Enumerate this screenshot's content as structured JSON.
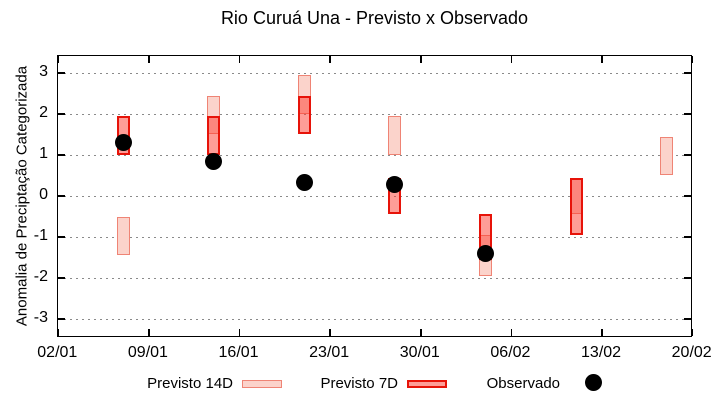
{
  "chart_data": {
    "type": "bar",
    "subtype": "forecast-range-boxes-with-observed-points",
    "title": "Rio Curuá Una - Previsto x Observado",
    "ylabel": "Anomalia de Preciptação Categorizada",
    "xlabel": "",
    "ylim": [
      -3.44,
      3.44
    ],
    "yticks": [
      3,
      2,
      1,
      0,
      -1,
      -2,
      -3
    ],
    "xlim_days": [
      0,
      49
    ],
    "xticks": [
      {
        "day": 0,
        "label": "02/01"
      },
      {
        "day": 7,
        "label": "09/01"
      },
      {
        "day": 14,
        "label": "16/01"
      },
      {
        "day": 21,
        "label": "23/01"
      },
      {
        "day": 28,
        "label": "30/01"
      },
      {
        "day": 35,
        "label": "06/02"
      },
      {
        "day": 42,
        "label": "13/02"
      },
      {
        "day": 49,
        "label": "20/02"
      }
    ],
    "grid": "horizontal dotted gray",
    "legend_position": "below-plot",
    "colors": {
      "previsto_14d_fill": "#fbd3cb",
      "previsto_14d_border": "#ef8475",
      "previsto_7d_fill": "rgba(253,60,48,0.5)",
      "previsto_7d_border": "#e71309",
      "observado": "#000000"
    },
    "series": [
      {
        "name": "Previsto 14D",
        "type": "range-box",
        "points": [
          {
            "date": "07/01",
            "day": 5,
            "low": -1.45,
            "high": -0.5
          },
          {
            "date": "14/01",
            "day": 12,
            "low": 1.5,
            "high": 2.45
          },
          {
            "date": "21/01",
            "day": 19,
            "low": 2.0,
            "high": 2.95
          },
          {
            "date": "28/01",
            "day": 26,
            "low": 1.0,
            "high": 1.95
          },
          {
            "date": "04/02",
            "day": 33,
            "low": -1.95,
            "high": -0.95
          },
          {
            "date": "11/02",
            "day": 40,
            "low": -0.45,
            "high": 0.45
          },
          {
            "date": "18/02",
            "day": 47,
            "low": 0.5,
            "high": 1.45
          }
        ]
      },
      {
        "name": "Previsto 7D",
        "type": "range-box",
        "points": [
          {
            "date": "07/01",
            "day": 5,
            "low": 1.0,
            "high": 1.95
          },
          {
            "date": "14/01",
            "day": 12,
            "low": 1.0,
            "high": 1.95
          },
          {
            "date": "21/01",
            "day": 19,
            "low": 1.5,
            "high": 2.45
          },
          {
            "date": "28/01",
            "day": 26,
            "low": -0.45,
            "high": 0.45
          },
          {
            "date": "04/02",
            "day": 33,
            "low": -1.55,
            "high": -0.45
          },
          {
            "date": "11/02",
            "day": 40,
            "low": -0.95,
            "high": 0.45
          }
        ]
      },
      {
        "name": "Observado",
        "type": "scatter",
        "points": [
          {
            "date": "07/01",
            "day": 5,
            "value": 1.3
          },
          {
            "date": "14/01",
            "day": 12,
            "value": 0.85
          },
          {
            "date": "21/01",
            "day": 19,
            "value": 0.33
          },
          {
            "date": "28/01",
            "day": 26,
            "value": 0.28
          },
          {
            "date": "04/02",
            "day": 33,
            "value": -1.4
          }
        ]
      }
    ]
  }
}
